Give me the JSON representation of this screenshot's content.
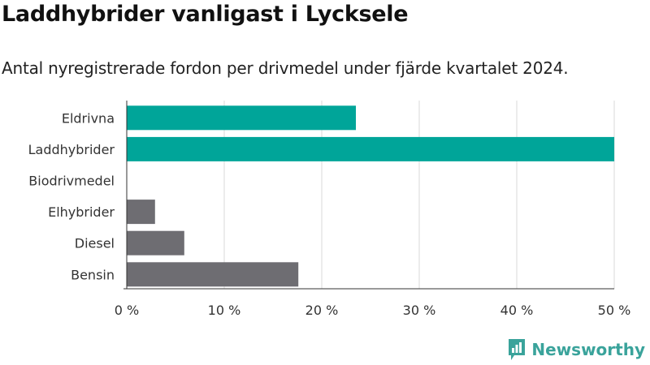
{
  "title": "Laddhybrider vanligast i Lycksele",
  "subtitle": "Antal nyregistrerade fordon per drivmedel under fjärde kvartalet 2024.",
  "brand": {
    "name": "Newsworthy",
    "icon": "newsworthy-logo-icon"
  },
  "colors": {
    "highlight": "#00a599",
    "default": "#6e6d72",
    "grid": "#d9d9d9"
  },
  "chart_data": {
    "type": "bar",
    "orientation": "horizontal",
    "categories": [
      "Eldrivna",
      "Laddhybrider",
      "Biodrivmedel",
      "Elhybrider",
      "Diesel",
      "Bensin"
    ],
    "values": [
      23.5,
      50.0,
      0.0,
      2.9,
      5.9,
      17.6
    ],
    "highlighted": [
      true,
      true,
      false,
      false,
      false,
      false
    ],
    "x_ticks": [
      "0 %",
      "10 %",
      "20 %",
      "30 %",
      "40 %",
      "50 %"
    ],
    "xlim": [
      0,
      50
    ],
    "grid": true,
    "xlabel": "",
    "ylabel": ""
  }
}
